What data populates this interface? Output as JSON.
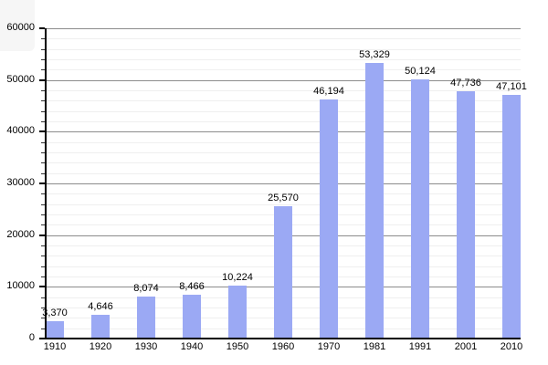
{
  "chart_data": {
    "type": "bar",
    "title": "",
    "xlabel": "",
    "ylabel": "",
    "categories": [
      "1910",
      "1920",
      "1930",
      "1940",
      "1950",
      "1960",
      "1970",
      "1981",
      "1991",
      "2001",
      "2010"
    ],
    "values": [
      3370,
      4646,
      8074,
      8466,
      10224,
      25570,
      46194,
      53329,
      50124,
      47736,
      47101
    ],
    "value_labels": [
      "3,370",
      "4,646",
      "8,074",
      "8,466",
      "10,224",
      "25,570",
      "46,194",
      "53,329",
      "50,124",
      "47,736",
      "47,101"
    ],
    "ylim": [
      0,
      60000
    ],
    "y_major_step": 10000,
    "y_minor_step": 2000,
    "y_tick_labels": [
      "0",
      "10000",
      "20000",
      "30000",
      "40000",
      "50000",
      "60000"
    ],
    "grid": "on",
    "legend": "none",
    "colors": {
      "bar_fill": "#9BA9F4",
      "major_gridline": "#8C8C8C",
      "minor_gridline": "#EFEFEF",
      "axis_line": "#000000",
      "label_text": "#000000",
      "background": "#FFFFFF"
    }
  }
}
